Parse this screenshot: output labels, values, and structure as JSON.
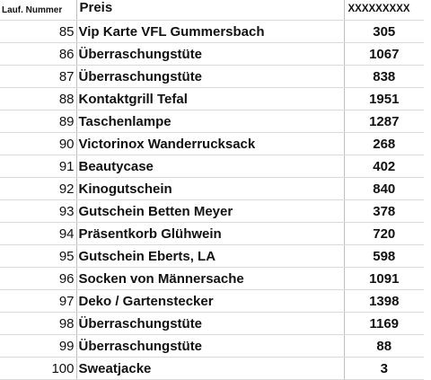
{
  "header": {
    "col1": "Lauf. Nummer",
    "col2": "Preis",
    "col3": "XXXXXXXXX"
  },
  "rows": [
    {
      "nr": "85",
      "prize": "Vip Karte VFL Gummersbach",
      "value": "305"
    },
    {
      "nr": "86",
      "prize": "Überraschungstüte",
      "value": "1067"
    },
    {
      "nr": "87",
      "prize": "Überraschungstüte",
      "value": "838"
    },
    {
      "nr": "88",
      "prize": "Kontaktgrill Tefal",
      "value": "1951"
    },
    {
      "nr": "89",
      "prize": "Taschenlampe",
      "value": "1287"
    },
    {
      "nr": "90",
      "prize": "Victorinox Wanderrucksack",
      "value": "268"
    },
    {
      "nr": "91",
      "prize": "Beautycase",
      "value": "402"
    },
    {
      "nr": "92",
      "prize": "Kinogutschein",
      "value": "840"
    },
    {
      "nr": "93",
      "prize": "Gutschein Betten Meyer",
      "value": "378"
    },
    {
      "nr": "94",
      "prize": "Präsentkorb Glühwein",
      "value": "720"
    },
    {
      "nr": "95",
      "prize": "Gutschein Eberts, LA",
      "value": "598"
    },
    {
      "nr": "96",
      "prize": "Socken von Männersache",
      "value": "1091"
    },
    {
      "nr": "97",
      "prize": "Deko / Gartenstecker",
      "value": "1398"
    },
    {
      "nr": "98",
      "prize": "Überraschungstüte",
      "value": "1169"
    },
    {
      "nr": "99",
      "prize": "Überraschungstüte",
      "value": "88"
    },
    {
      "nr": "100",
      "prize": "Sweatjacke",
      "value": "3"
    }
  ]
}
